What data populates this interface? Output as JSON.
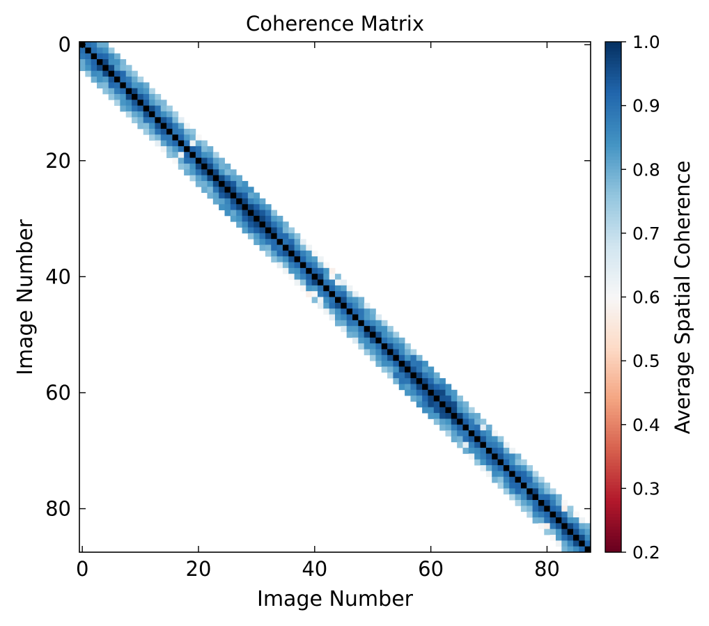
{
  "chart_data": {
    "type": "heatmap",
    "title": "Coherence Matrix",
    "xlabel": "Image Number",
    "ylabel": "Image Number",
    "n": 88,
    "xlim": [
      -0.5,
      87.5
    ],
    "ylim": [
      87.5,
      -0.5
    ],
    "x_ticks": [
      0,
      20,
      40,
      60,
      80
    ],
    "y_ticks": [
      0,
      20,
      40,
      60,
      80
    ],
    "diagonal_value": 1.0,
    "bandwidth": 4,
    "colorbar": {
      "label": "Average Spatial Coherence",
      "vmin": 0.2,
      "vmax": 1.0,
      "ticks": [
        "0.2",
        "0.3",
        "0.4",
        "0.5",
        "0.6",
        "0.7",
        "0.8",
        "0.9",
        "1.0"
      ],
      "colormap": "RdBu",
      "threshold": 0.7
    },
    "low_coherence_pairs": [
      [
        13,
        17,
        0.64
      ],
      [
        14,
        18,
        0.62
      ],
      [
        16,
        20,
        0.6
      ],
      [
        17,
        19,
        0.62
      ],
      [
        34,
        38,
        0.64
      ],
      [
        35,
        39,
        0.62
      ],
      [
        36,
        40,
        0.6
      ],
      [
        37,
        41,
        0.62
      ],
      [
        38,
        42,
        0.6
      ],
      [
        39,
        43,
        0.58
      ],
      [
        40,
        43,
        0.6
      ],
      [
        41,
        44,
        0.62
      ],
      [
        41,
        45,
        0.64
      ],
      [
        42,
        46,
        0.62
      ],
      [
        43,
        47,
        0.64
      ],
      [
        45,
        49,
        0.66
      ],
      [
        47,
        51,
        0.66
      ],
      [
        66,
        69,
        0.64
      ],
      [
        67,
        71,
        0.62
      ],
      [
        69,
        73,
        0.64
      ],
      [
        70,
        74,
        0.62
      ],
      [
        79,
        83,
        0.6
      ],
      [
        80,
        83,
        0.58
      ],
      [
        81,
        85,
        0.6
      ],
      [
        82,
        86,
        0.62
      ]
    ],
    "grid": false
  }
}
